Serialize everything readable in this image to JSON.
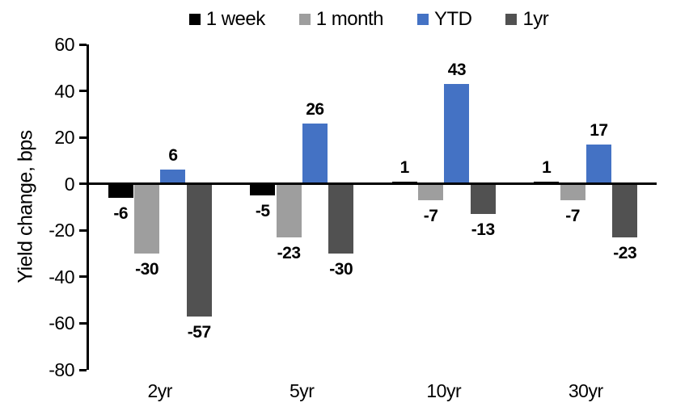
{
  "chart_data": {
    "type": "bar",
    "title": "",
    "ylabel": "Yield change, bps",
    "xlabel": "",
    "categories": [
      "2yr",
      "5yr",
      "10yr",
      "30yr"
    ],
    "series": [
      {
        "name": "1 week",
        "color": "#000000",
        "values": [
          -6,
          -5,
          1,
          1
        ]
      },
      {
        "name": "1 month",
        "color": "#9E9E9E",
        "values": [
          -30,
          -23,
          -7,
          -7
        ]
      },
      {
        "name": "YTD",
        "color": "#4472C4",
        "values": [
          6,
          26,
          43,
          17
        ]
      },
      {
        "name": "1yr",
        "color": "#515151",
        "values": [
          -57,
          -30,
          -13,
          -23
        ]
      }
    ],
    "ylim": [
      -80,
      60
    ],
    "yticks": [
      60,
      40,
      20,
      0,
      -20,
      -40,
      -60,
      -80
    ],
    "grid": false,
    "legend_position": "top",
    "data_labels": true,
    "axis_color": "#000000"
  }
}
